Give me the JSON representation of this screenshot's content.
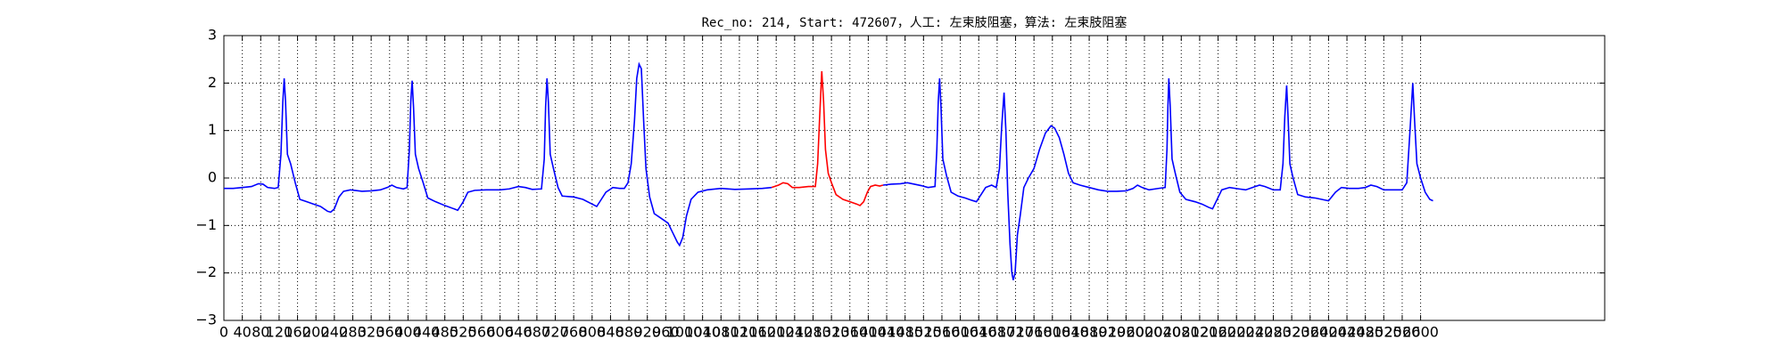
{
  "chart_data": {
    "type": "line",
    "title": "Rec_no: 214, Start: 472607，人工: 左束肢阻塞，算法: 左束肢阻塞",
    "xlim": [
      0,
      3000
    ],
    "xticks": [
      0,
      40,
      80,
      120,
      160,
      200,
      240,
      280,
      320,
      360,
      400,
      440,
      480,
      520,
      560,
      600,
      640,
      680,
      720,
      760,
      800,
      840,
      880,
      920,
      960,
      1000,
      1040,
      1080,
      1120,
      1160,
      1200,
      1240,
      1280,
      1320,
      1360,
      1400,
      1440,
      1480,
      1520,
      1560,
      1600,
      1640,
      1680,
      1720,
      1760,
      1800,
      1840,
      1880,
      1920,
      1960,
      2000,
      2040,
      2080,
      2120,
      2160,
      2200,
      2240,
      2280,
      2320,
      2360,
      2400,
      2440,
      2480,
      2520,
      2560,
      2600
    ],
    "ylim": [
      -3,
      3
    ],
    "yticks": [
      {
        "value": -3,
        "label": "−3"
      },
      {
        "value": -2,
        "label": "−2"
      },
      {
        "value": -1,
        "label": "−1"
      },
      0,
      1,
      2,
      3
    ],
    "grid": true,
    "series": [
      {
        "color": "#0000ff",
        "x": [
          0,
          20,
          40,
          60,
          75,
          85,
          95,
          110,
          118,
          124,
          128,
          131,
          134,
          138,
          145,
          155,
          165,
          180,
          195,
          210,
          225,
          232,
          240,
          250,
          260,
          275,
          300,
          320,
          340,
          355,
          365,
          375,
          390,
          398,
          403,
          406,
          409,
          412,
          416,
          423,
          433,
          443,
          460,
          480,
          500,
          508,
          520,
          530,
          545,
          570,
          600,
          620,
          640,
          655,
          670,
          690,
          696,
          699,
          702,
          705,
          709,
          716,
          726,
          735,
          760,
          780,
          800,
          810,
          820,
          830,
          845,
          860,
          870,
          878,
          885,
          892,
          897,
          902,
          907,
          912,
          917,
          925,
          935,
          950,
          965,
          975,
          985,
          990,
          997,
          1005,
          1015,
          1030,
          1050,
          1080,
          1110,
          1140,
          1170,
          1190,
          1300,
          1432,
          1450,
          1470,
          1485,
          1500,
          1515,
          1530,
          1545,
          1549,
          1552,
          1555,
          1558,
          1562,
          1570,
          1580,
          1595,
          1610,
          1625,
          1635,
          1645,
          1655,
          1668,
          1678,
          1685,
          1690,
          1695,
          1699,
          1703,
          1708,
          1712,
          1715,
          1719,
          1724,
          1730,
          1738,
          1748,
          1760,
          1772,
          1785,
          1797,
          1805,
          1815,
          1825,
          1835,
          1845,
          1860,
          1880,
          1900,
          1920,
          1940,
          1960,
          1975,
          1985,
          1995,
          2010,
          2030,
          2045,
          2049,
          2051,
          2053,
          2056,
          2060,
          2067,
          2077,
          2090,
          2110,
          2125,
          2140,
          2148,
          2158,
          2168,
          2185,
          2205,
          2220,
          2235,
          2250,
          2262,
          2280,
          2295,
          2301,
          2305,
          2309,
          2312,
          2316,
          2323,
          2333,
          2350,
          2370,
          2385,
          2400,
          2415,
          2428,
          2445,
          2465,
          2480,
          2492,
          2505,
          2520,
          2540,
          2560,
          2570,
          2577,
          2583,
          2587,
          2592,
          2600,
          2610,
          2620,
          2627
        ],
        "values": [
          -0.22,
          -0.22,
          -0.2,
          -0.18,
          -0.12,
          -0.13,
          -0.2,
          -0.22,
          -0.2,
          0.5,
          1.6,
          2.1,
          1.6,
          0.5,
          0.3,
          -0.1,
          -0.45,
          -0.5,
          -0.55,
          -0.6,
          -0.7,
          -0.72,
          -0.65,
          -0.4,
          -0.28,
          -0.25,
          -0.28,
          -0.27,
          -0.25,
          -0.2,
          -0.15,
          -0.2,
          -0.23,
          -0.2,
          0.6,
          1.6,
          2.05,
          1.5,
          0.5,
          0.2,
          -0.1,
          -0.42,
          -0.5,
          -0.58,
          -0.65,
          -0.68,
          -0.5,
          -0.3,
          -0.26,
          -0.25,
          -0.25,
          -0.23,
          -0.18,
          -0.2,
          -0.24,
          -0.23,
          0.4,
          1.5,
          2.1,
          1.6,
          0.5,
          0.2,
          -0.2,
          -0.38,
          -0.4,
          -0.45,
          -0.55,
          -0.6,
          -0.45,
          -0.3,
          -0.2,
          -0.22,
          -0.22,
          -0.1,
          0.3,
          1.2,
          2.1,
          2.4,
          2.3,
          1.2,
          0.2,
          -0.4,
          -0.75,
          -0.85,
          -0.95,
          -1.15,
          -1.35,
          -1.42,
          -1.25,
          -0.8,
          -0.45,
          -0.3,
          -0.25,
          -0.22,
          -0.24,
          -0.23,
          -0.22,
          -0.2,
          null,
          -0.15,
          -0.13,
          -0.12,
          -0.1,
          -0.13,
          -0.16,
          -0.2,
          -0.18,
          0.6,
          1.6,
          2.1,
          1.5,
          0.4,
          0.05,
          -0.3,
          -0.38,
          -0.42,
          -0.47,
          -0.5,
          -0.35,
          -0.2,
          -0.15,
          -0.2,
          0.2,
          1.1,
          1.8,
          1.0,
          -0.3,
          -1.4,
          -2.0,
          -2.15,
          -2.0,
          -1.2,
          -0.8,
          -0.2,
          0.0,
          0.2,
          0.6,
          0.95,
          1.1,
          1.05,
          0.85,
          0.5,
          0.1,
          -0.1,
          -0.15,
          -0.2,
          -0.25,
          -0.28,
          -0.28,
          -0.27,
          -0.22,
          -0.15,
          -0.2,
          -0.25,
          -0.22,
          -0.2,
          0.6,
          1.5,
          2.1,
          1.5,
          0.4,
          0.1,
          -0.3,
          -0.45,
          -0.5,
          -0.55,
          -0.62,
          -0.65,
          -0.45,
          -0.25,
          -0.2,
          -0.23,
          -0.25,
          -0.2,
          -0.15,
          -0.18,
          -0.25,
          -0.25,
          0.3,
          1.3,
          1.95,
          1.3,
          0.3,
          0.0,
          -0.35,
          -0.4,
          -0.42,
          -0.45,
          -0.48,
          -0.3,
          -0.2,
          -0.22,
          -0.22,
          -0.2,
          -0.15,
          -0.18,
          -0.25,
          -0.25,
          -0.25,
          -0.1,
          1.0,
          2.0,
          1.2,
          0.3,
          0.0,
          -0.3,
          -0.45,
          -0.48
        ]
      },
      {
        "color": "#ff0000",
        "x": [
          1190,
          1205,
          1215,
          1225,
          1235,
          1250,
          1270,
          1285,
          1290,
          1294,
          1299,
          1303,
          1307,
          1313,
          1320,
          1330,
          1345,
          1360,
          1375,
          1382,
          1390,
          1398,
          1405,
          1415,
          1425,
          1432
        ],
        "values": [
          -0.2,
          -0.15,
          -0.1,
          -0.12,
          -0.2,
          -0.2,
          -0.18,
          -0.18,
          0.3,
          1.2,
          2.25,
          1.6,
          0.6,
          0.1,
          -0.1,
          -0.35,
          -0.45,
          -0.5,
          -0.55,
          -0.58,
          -0.5,
          -0.3,
          -0.18,
          -0.15,
          -0.17,
          -0.15
        ]
      }
    ]
  }
}
